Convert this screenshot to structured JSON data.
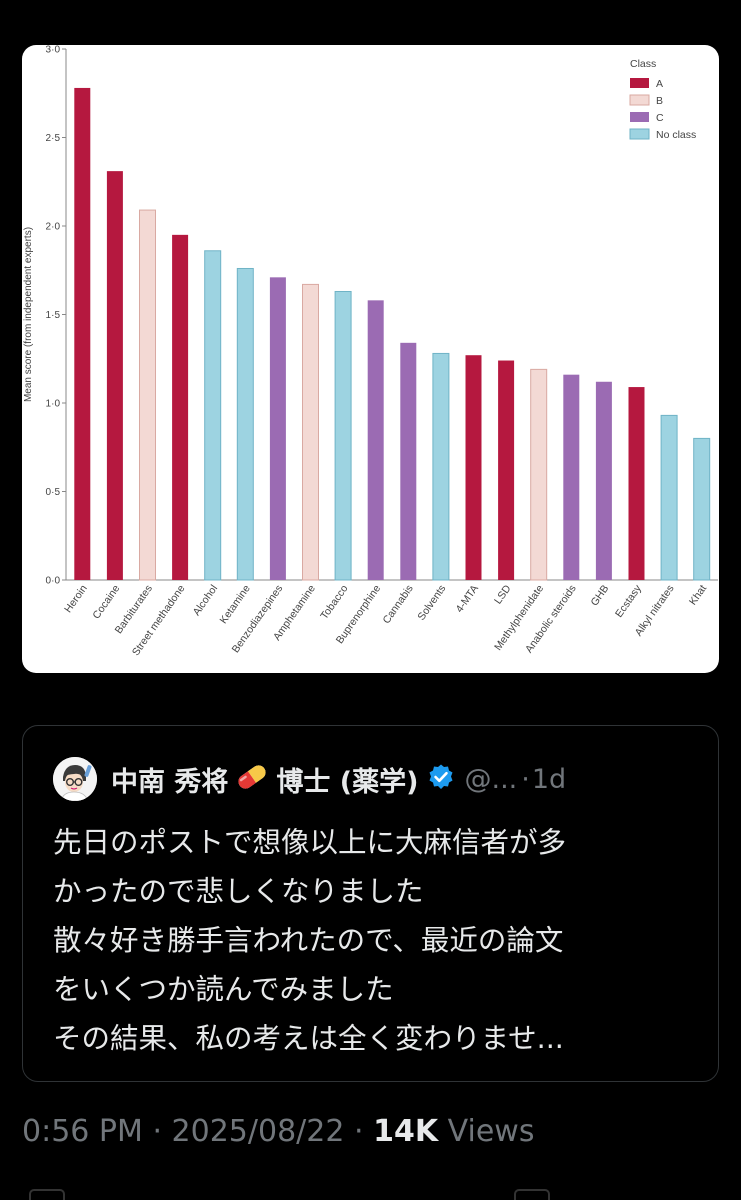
{
  "chart_data": {
    "type": "bar",
    "title": "",
    "xlabel": "",
    "ylabel": "Mean score (from independent experts)",
    "ylim": [
      0,
      3.0
    ],
    "yticks": [
      "0·0",
      "0·5",
      "1·0",
      "1·5",
      "2·0",
      "2·5",
      "3·0"
    ],
    "categories": [
      "Heroin",
      "Cocaine",
      "Barbiturates",
      "Street methadone",
      "Alcohol",
      "Ketamine",
      "Benzodiazepines",
      "Amphetamine",
      "Tobacco",
      "Buprenorphine",
      "Cannabis",
      "Solvents",
      "4-MTA",
      "LSD",
      "Methylphenidate",
      "Anabolic steroids",
      "GHB",
      "Ecstasy",
      "Alkyl nitrates",
      "Khat"
    ],
    "values": [
      2.78,
      2.31,
      2.09,
      1.95,
      1.86,
      1.76,
      1.71,
      1.67,
      1.63,
      1.58,
      1.34,
      1.28,
      1.27,
      1.24,
      1.19,
      1.16,
      1.12,
      1.09,
      0.93,
      0.8
    ],
    "classes": [
      "A",
      "A",
      "B",
      "A",
      "No class",
      "No class",
      "C",
      "B",
      "No class",
      "C",
      "C",
      "No class",
      "A",
      "A",
      "B",
      "C",
      "C",
      "A",
      "No class",
      "No class"
    ],
    "legend": {
      "title": "Class",
      "position": "top-right",
      "entries": [
        {
          "name": "A",
          "color": "#b5183f"
        },
        {
          "name": "B",
          "color": "#f3d9d4"
        },
        {
          "name": "C",
          "color": "#9b6bb3"
        },
        {
          "name": "No class",
          "color": "#9dd3e1"
        }
      ]
    },
    "grid": false
  },
  "quote": {
    "name": "中南 秀将",
    "name_suffix": "博士 (薬学)",
    "handle": "@...",
    "separator": "·",
    "time": "1d",
    "lines": [
      "先日のポストで想像以上に大麻信者が多",
      "かったので悲しくなりました",
      "散々好き勝手言われたので、最近の論文",
      "をいくつか読んでみました",
      "その結果、私の考えは全く変わりませ..."
    ]
  },
  "footer": {
    "time": "0:56 PM",
    "sep1": "·",
    "date": "2025/08/22",
    "sep2": "·",
    "views_count": "14K",
    "views_label": "Views"
  }
}
